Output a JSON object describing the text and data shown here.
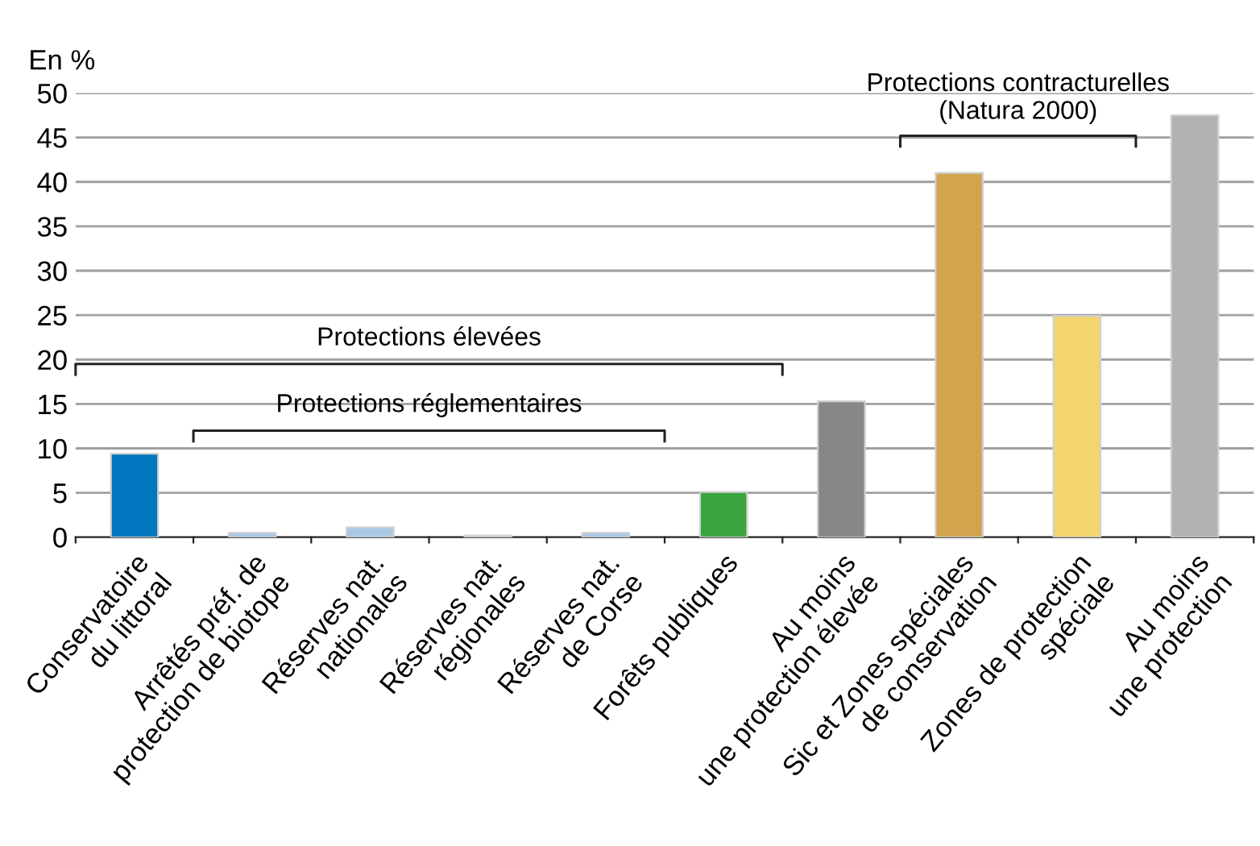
{
  "chart_data": {
    "type": "bar",
    "ylabel": "En %",
    "categories": [
      "Conservatoire\ndu littoral",
      "Arrêtés préf. de\nprotection de biotope",
      "Réserves nat.\nnationales",
      "Réserves nat.\nrégionales",
      "Réserves nat.\nde Corse",
      "Forêts publiques",
      "Au moins\nune protection élevée",
      "Sic et Zones spéciales\nde conservation",
      "Zones de protection\nspéciale",
      "Au moins\nune protection"
    ],
    "values": [
      9.4,
      0.5,
      1.1,
      0.2,
      0.5,
      5.1,
      15.3,
      41.0,
      24.9,
      47.5
    ],
    "colors": [
      "#0077bf",
      "#a9c8e6",
      "#a9c8e6",
      "#a9c8e6",
      "#a9c8e6",
      "#3aa53e",
      "#868789",
      "#d2a44e",
      "#f4d46e",
      "#b1b2b4"
    ],
    "ylim": [
      0,
      50
    ],
    "yticks": [
      0,
      5,
      10,
      15,
      20,
      25,
      30,
      35,
      40,
      45,
      50
    ],
    "grid": "y",
    "annotations": [
      "Protections élevées",
      "Protections réglementaires",
      "Protections contracturelles\n(Natura 2000)"
    ]
  }
}
